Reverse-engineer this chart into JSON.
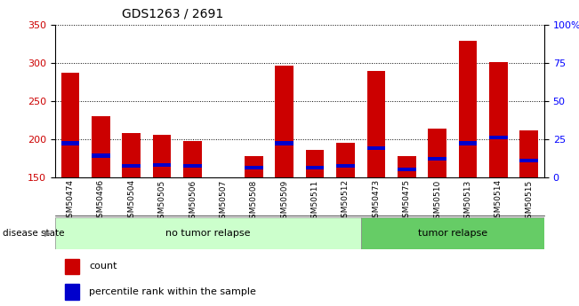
{
  "title": "GDS1263 / 2691",
  "samples": [
    "GSM50474",
    "GSM50496",
    "GSM50504",
    "GSM50505",
    "GSM50506",
    "GSM50507",
    "GSM50508",
    "GSM50509",
    "GSM50511",
    "GSM50512",
    "GSM50473",
    "GSM50475",
    "GSM50510",
    "GSM50513",
    "GSM50514",
    "GSM50515"
  ],
  "counts": [
    287,
    230,
    208,
    206,
    198,
    150,
    178,
    296,
    186,
    195,
    289,
    178,
    214,
    329,
    301,
    211
  ],
  "percentile_values": [
    192,
    176,
    163,
    164,
    163,
    150,
    160,
    192,
    160,
    163,
    186,
    158,
    172,
    192,
    200,
    170
  ],
  "blue_heights": [
    6,
    6,
    5,
    5,
    5,
    0,
    5,
    6,
    5,
    5,
    5,
    5,
    5,
    6,
    5,
    5
  ],
  "group_no_tumor": 10,
  "group_tumor": 6,
  "ymin": 150,
  "ymax": 350,
  "yticks": [
    150,
    200,
    250,
    300,
    350
  ],
  "right_yticks": [
    0,
    25,
    50,
    75,
    100
  ],
  "right_yticklabels": [
    "0",
    "25",
    "50",
    "75",
    "100%"
  ],
  "bar_color_red": "#cc0000",
  "bar_color_blue": "#0000cc",
  "no_tumor_color": "#ccffcc",
  "tumor_color": "#66cc66",
  "group_label_no_tumor": "no tumor relapse",
  "group_label_tumor": "tumor relapse",
  "disease_state_label": "disease state",
  "legend_count": "count",
  "legend_percentile": "percentile rank within the sample",
  "bar_width": 0.6
}
